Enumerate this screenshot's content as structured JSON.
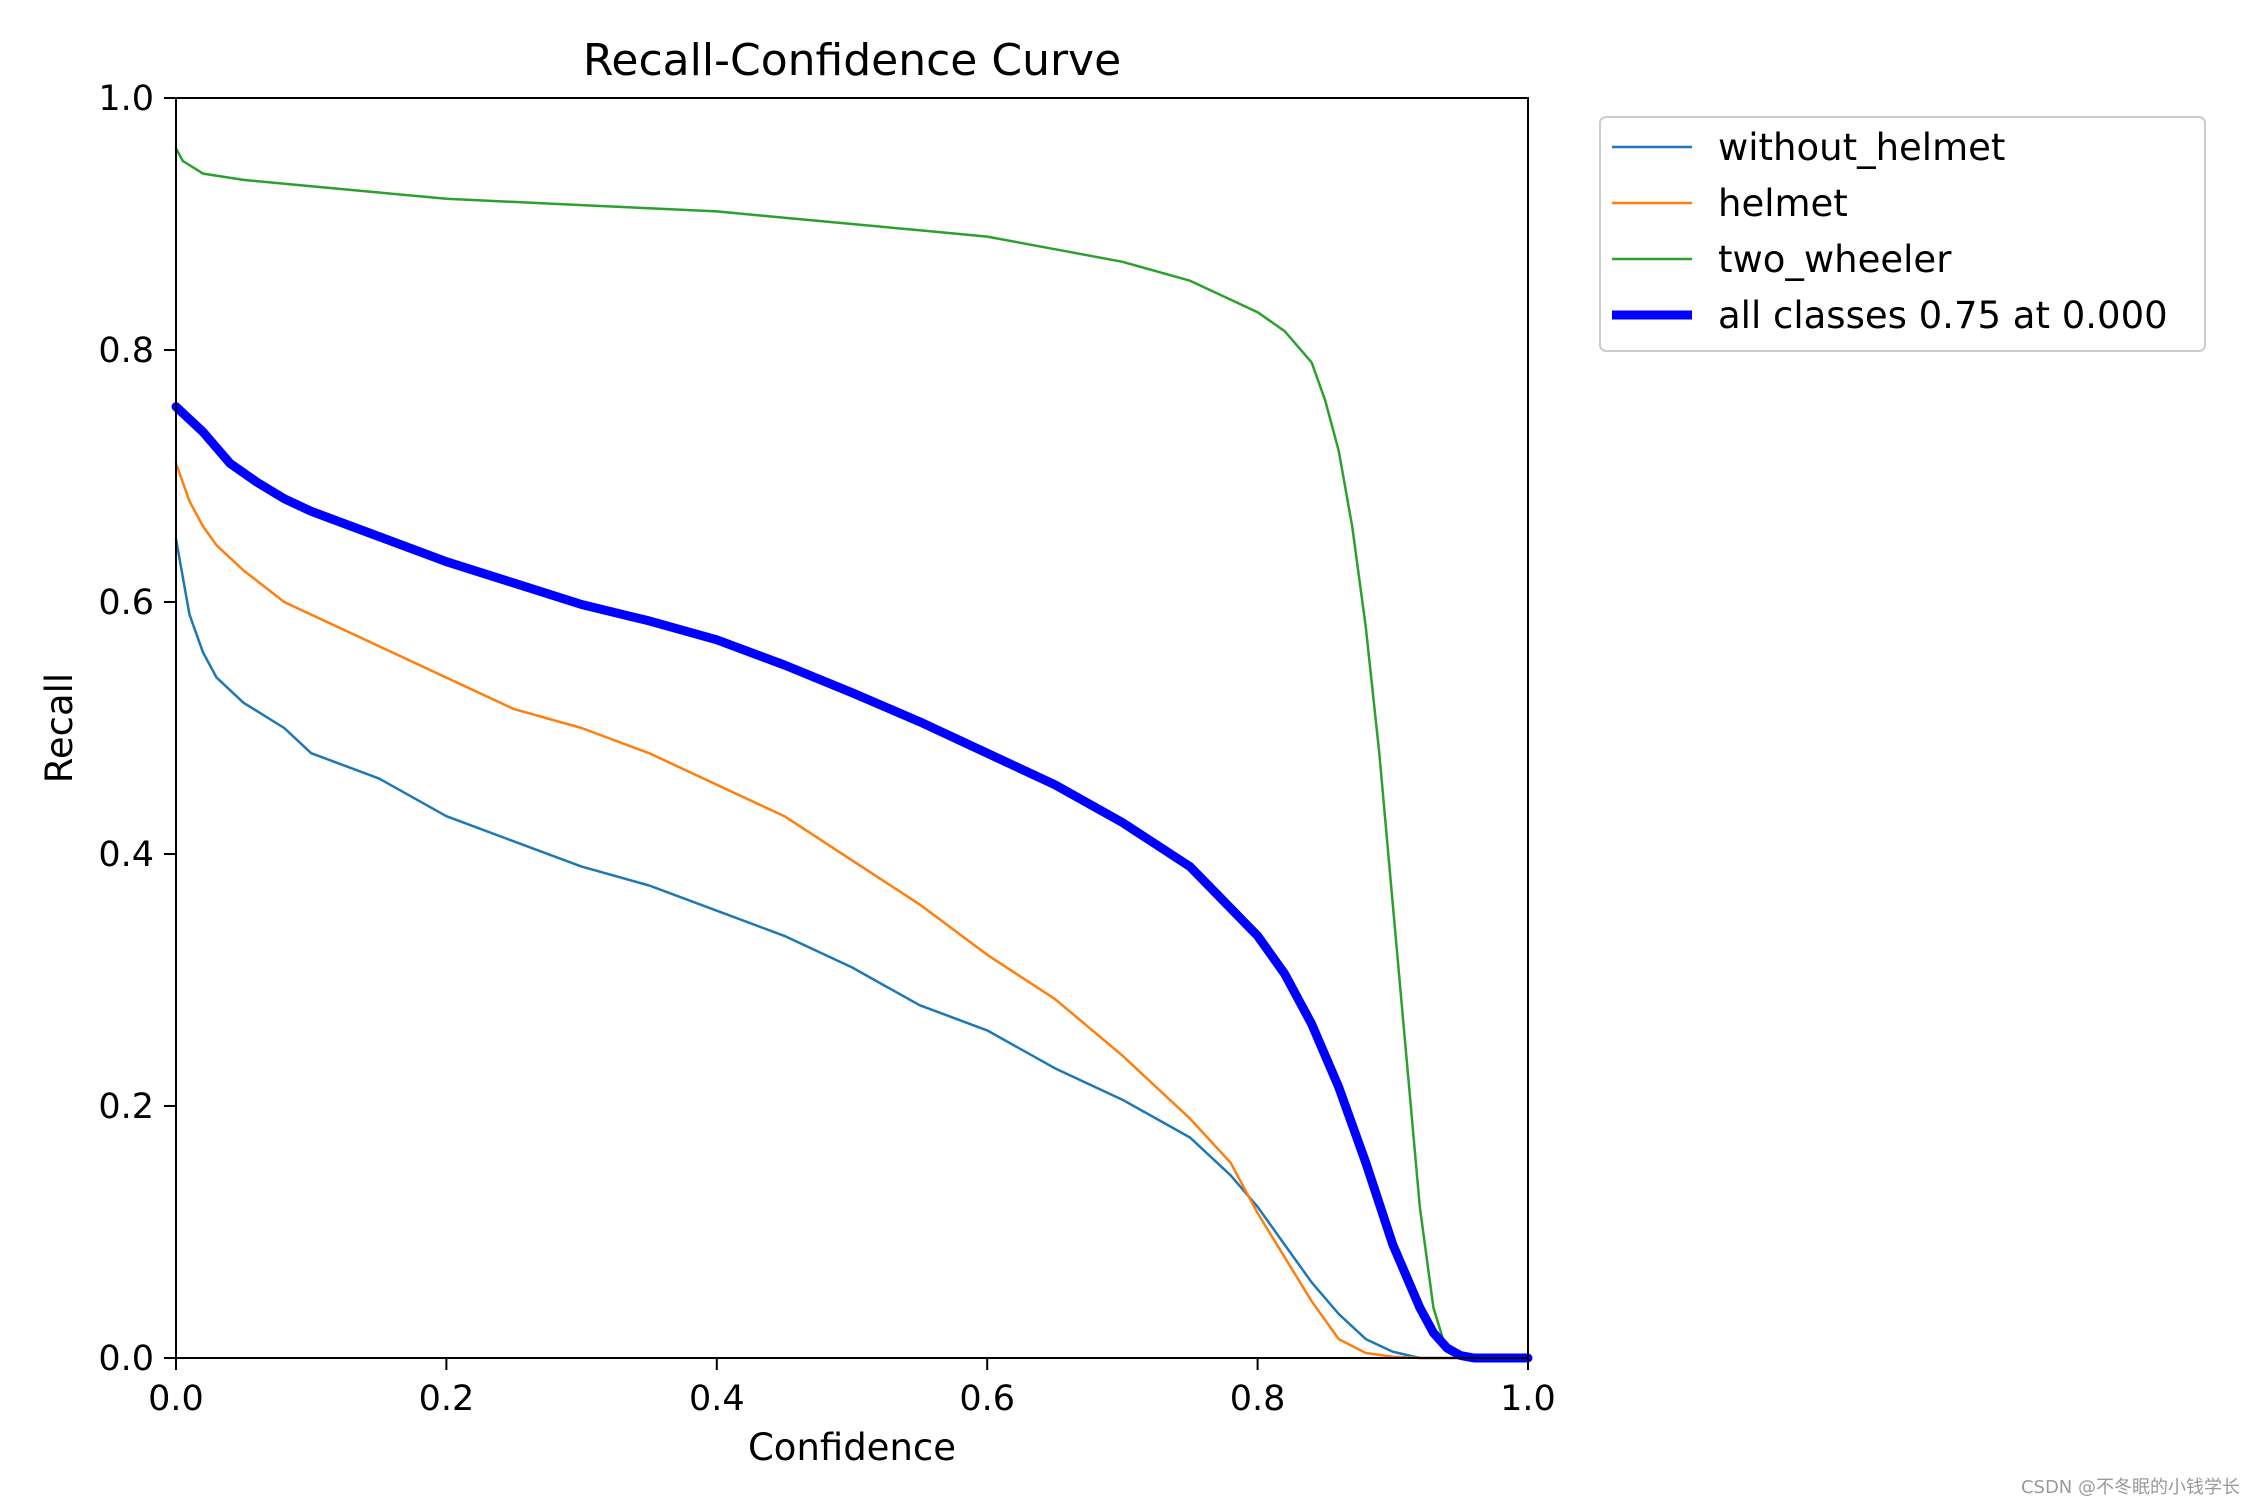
{
  "chart_data": {
    "type": "line",
    "title": "Recall-Confidence Curve",
    "xlabel": "Confidence",
    "ylabel": "Recall",
    "xlim": [
      0,
      1
    ],
    "ylim": [
      0,
      1
    ],
    "xticks": [
      "0.0",
      "0.2",
      "0.4",
      "0.6",
      "0.8",
      "1.0"
    ],
    "yticks": [
      "0.0",
      "0.2",
      "0.4",
      "0.6",
      "0.8",
      "1.0"
    ],
    "grid": false,
    "legend_position": "outside-top-right",
    "series": [
      {
        "name": "without_helmet",
        "color": "#1f77b4",
        "x": [
          0,
          0.01,
          0.02,
          0.03,
          0.05,
          0.08,
          0.1,
          0.15,
          0.2,
          0.25,
          0.3,
          0.35,
          0.4,
          0.45,
          0.5,
          0.55,
          0.6,
          0.65,
          0.7,
          0.75,
          0.78,
          0.8,
          0.82,
          0.84,
          0.86,
          0.88,
          0.9,
          0.92,
          1.0
        ],
        "y": [
          0.65,
          0.59,
          0.56,
          0.54,
          0.52,
          0.5,
          0.48,
          0.46,
          0.43,
          0.41,
          0.39,
          0.375,
          0.355,
          0.335,
          0.31,
          0.28,
          0.26,
          0.23,
          0.205,
          0.175,
          0.145,
          0.12,
          0.09,
          0.06,
          0.035,
          0.015,
          0.005,
          0.0,
          0.0
        ]
      },
      {
        "name": "helmet",
        "color": "#ff7f0e",
        "x": [
          0,
          0.01,
          0.02,
          0.03,
          0.05,
          0.08,
          0.1,
          0.15,
          0.2,
          0.25,
          0.3,
          0.35,
          0.4,
          0.45,
          0.5,
          0.55,
          0.6,
          0.65,
          0.7,
          0.75,
          0.78,
          0.8,
          0.82,
          0.84,
          0.86,
          0.88,
          0.9,
          0.92,
          1.0
        ],
        "y": [
          0.71,
          0.68,
          0.66,
          0.645,
          0.625,
          0.6,
          0.59,
          0.565,
          0.54,
          0.515,
          0.5,
          0.48,
          0.455,
          0.43,
          0.395,
          0.36,
          0.32,
          0.285,
          0.24,
          0.19,
          0.155,
          0.115,
          0.08,
          0.045,
          0.015,
          0.004,
          0.001,
          0.0,
          0.0
        ]
      },
      {
        "name": "two_wheeler",
        "color": "#2ca02c",
        "x": [
          0,
          0.005,
          0.02,
          0.05,
          0.1,
          0.15,
          0.2,
          0.3,
          0.4,
          0.45,
          0.5,
          0.55,
          0.6,
          0.65,
          0.7,
          0.75,
          0.78,
          0.8,
          0.82,
          0.84,
          0.85,
          0.86,
          0.87,
          0.88,
          0.89,
          0.9,
          0.91,
          0.92,
          0.93,
          0.94,
          0.95,
          1.0
        ],
        "y": [
          0.96,
          0.95,
          0.94,
          0.935,
          0.93,
          0.925,
          0.92,
          0.915,
          0.91,
          0.905,
          0.9,
          0.895,
          0.89,
          0.88,
          0.87,
          0.855,
          0.84,
          0.83,
          0.815,
          0.79,
          0.76,
          0.72,
          0.66,
          0.58,
          0.48,
          0.36,
          0.24,
          0.12,
          0.04,
          0.005,
          0.0,
          0.0
        ]
      },
      {
        "name": "all classes 0.75 at 0.000",
        "color": "#0000ff",
        "width": "thick",
        "x": [
          0,
          0.02,
          0.04,
          0.06,
          0.08,
          0.1,
          0.15,
          0.2,
          0.25,
          0.3,
          0.35,
          0.4,
          0.45,
          0.5,
          0.55,
          0.6,
          0.65,
          0.7,
          0.75,
          0.8,
          0.82,
          0.84,
          0.86,
          0.88,
          0.9,
          0.92,
          0.93,
          0.94,
          0.95,
          0.96,
          1.0
        ],
        "y": [
          0.755,
          0.735,
          0.71,
          0.695,
          0.682,
          0.672,
          0.652,
          0.632,
          0.615,
          0.598,
          0.585,
          0.57,
          0.55,
          0.528,
          0.505,
          0.48,
          0.455,
          0.425,
          0.39,
          0.335,
          0.305,
          0.265,
          0.215,
          0.155,
          0.09,
          0.04,
          0.02,
          0.008,
          0.002,
          0.0,
          0.0
        ]
      }
    ]
  },
  "watermark": "CSDN @不冬眠的小钱学长"
}
